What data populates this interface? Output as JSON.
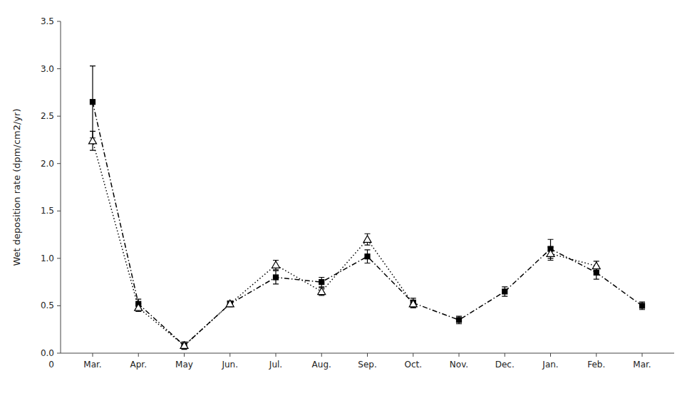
{
  "chart_data": {
    "type": "line",
    "categories": [
      "Mar.",
      "Apr.",
      "May",
      "Jun.",
      "Jul.",
      "Aug.",
      "Sep.",
      "Oct.",
      "Nov.",
      "Dec.",
      "Jan.",
      "Feb.",
      "Mar."
    ],
    "series": [
      {
        "color": "#000000",
        "marker": "square",
        "line_style": "dashdot",
        "values": [
          2.65,
          0.52,
          0.08,
          0.52,
          0.8,
          0.75,
          1.02,
          0.53,
          0.35,
          0.65,
          1.1,
          0.85,
          0.5
        ],
        "errors": [
          0.38,
          0.05,
          0.04,
          0.03,
          0.07,
          0.05,
          0.07,
          0.05,
          0.04,
          0.05,
          0.1,
          0.07,
          0.04
        ]
      },
      {
        "color": "#000000",
        "marker": "triangle-open",
        "line_style": "dotted",
        "values": [
          2.24,
          0.48,
          0.08,
          0.52,
          0.93,
          0.65,
          1.2,
          0.52,
          null,
          null,
          1.05,
          0.92,
          null
        ],
        "errors": [
          0.1,
          0.04,
          0.03,
          0.03,
          0.05,
          0.04,
          0.06,
          0.04,
          null,
          null,
          0.07,
          0.05,
          null
        ]
      }
    ],
    "y_label": "Wet deposition rate (dpm/cm2/yr)",
    "annotations": [
      "0"
    ],
    "ylim": [
      0,
      3.5
    ],
    "yticks": [
      {
        "value": 0,
        "label": "0.0"
      },
      0.5,
      {
        "value": 1,
        "label": "1.0"
      },
      1.5,
      {
        "value": 2,
        "label": "2.0"
      },
      2.5,
      {
        "value": 3,
        "label": "3.0"
      },
      3.5
    ],
    "grid": false
  }
}
